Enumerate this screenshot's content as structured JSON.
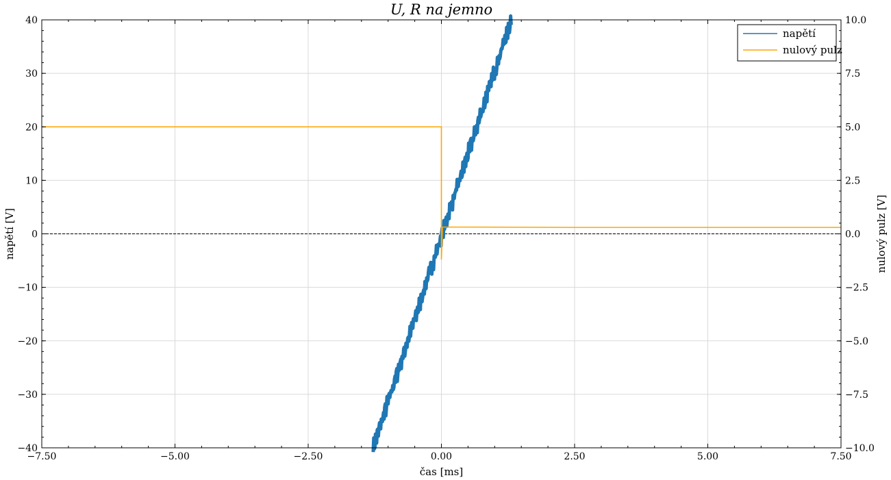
{
  "chart_data": {
    "type": "line",
    "title": "U, R na jemno",
    "xlabel": "čas [ms]",
    "ylabel": "napětí [V]",
    "ylabel_right": "nulový pulz [V]",
    "xlim": [
      -7.5,
      7.5
    ],
    "ylim": [
      -40,
      40
    ],
    "ylim_right": [
      -10,
      10
    ],
    "x_ticks": [
      -7.5,
      -5,
      -2.5,
      0,
      2.5,
      5,
      7.5
    ],
    "x_tick_labels": [
      "−7.50",
      "−5.00",
      "−2.50",
      "0.00",
      "2.50",
      "5.00",
      "7.50"
    ],
    "y_ticks": [
      -40,
      -30,
      -20,
      -10,
      0,
      10,
      20,
      30,
      40
    ],
    "y_tick_labels": [
      "−40",
      "−30",
      "−20",
      "−10",
      "0",
      "10",
      "20",
      "30",
      "40"
    ],
    "y_right_ticks": [
      -10,
      -7.5,
      -5,
      -2.5,
      0,
      2.5,
      5,
      7.5,
      10
    ],
    "y_right_tick_labels": [
      "−10.0",
      "−7.5",
      "−5.0",
      "−2.5",
      "0.0",
      "2.5",
      "5.0",
      "7.5",
      "10.0"
    ],
    "grid": true,
    "legend_position": "top-right",
    "reference_line": {
      "axis": "y",
      "value": 0,
      "style": "dashed"
    },
    "series": [
      {
        "name": "napětí",
        "axis": "left",
        "color": "#1f77b4",
        "x": [
          -1.28,
          -0.8,
          -0.4,
          0,
          0.4,
          0.8,
          1.31
        ],
        "y": [
          -40,
          -25,
          -12.5,
          0,
          12.5,
          25,
          40
        ]
      },
      {
        "name": "nulový pulz",
        "axis": "right",
        "color": "#ffa500",
        "x": [
          -7.5,
          -2.5,
          0,
          0,
          0.02,
          2.5,
          5,
          7.5
        ],
        "y": [
          5.0,
          5.0,
          5.0,
          -1.2,
          0.32,
          0.3,
          0.3,
          0.3
        ]
      }
    ]
  }
}
